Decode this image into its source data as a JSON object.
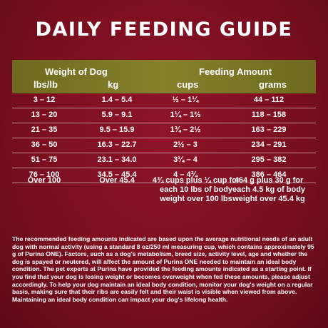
{
  "title": "DAILY FEEDING GUIDE",
  "header": {
    "weight_of_dog": "Weight of Dog",
    "feeding_amount": "Feeding Amount",
    "lbs_col": "lbs/lb",
    "kg_col": "kg",
    "cups_col": "cups",
    "grams_col": "grams"
  },
  "rows": [
    {
      "lbs": "3 – 12",
      "kg": "1.4 – 5.4",
      "cups": "½ – 1¼",
      "grams": "44 – 112"
    },
    {
      "lbs": "13 – 20",
      "kg": "5.9 – 9.1",
      "cups": "1¼ – 1⅔",
      "grams": "118 – 158"
    },
    {
      "lbs": "21 – 35",
      "kg": "9.5 – 15.9",
      "cups": "1¾ – 2½",
      "grams": "163 – 229"
    },
    {
      "lbs": "36 – 50",
      "kg": "16.3 – 22.7",
      "cups": "2½ – 3",
      "grams": "234 – 291"
    },
    {
      "lbs": "51 – 75",
      "kg": "23.1 – 34.0",
      "cups": "3¼ – 4",
      "grams": "295 – 382"
    },
    {
      "lbs": "76 – 100",
      "kg": "34.5 – 45.4",
      "cups": "4 – 4¾",
      "grams": "386 – 464"
    }
  ],
  "over_row": {
    "lbs": "Over 100",
    "kg": "Over 45.4",
    "cups": "4¾ cups plus ¼ cup for each 10 lbs of body weight over 100 lbs",
    "grams": "464 g plus 30 g for each 4.5 kg of body weight over 45.4 kg"
  },
  "note": "The recommended feeding amounts indicated are based upon the average nutritional needs of an adult dog with normal activity (using a standard 8 oz/250 ml measuring cup, which contains approximately 95 g of Purina ONE). Factors, such as a dog's metabolism, breed size, activity level, age and whether the dog is spayed or neutered, will affect the amount of Purina ONE needed to maintain an ideal body condition. The pet experts at Purina have provided the feeding amounts indicated as a starting point. If you find that your dog is losing weight or becomes overweight when fed these amounts, please adjust accordingly. To help your dog maintain an ideal body condition, monitor your dog's weight on a regular basis, making sure that their ribs are easily felt and their waist is visible when viewed from above. Maintaining an ideal body condition can impact your dog's lifelong health.",
  "colors": {
    "background": "#7a0f20",
    "header_band": "#7c7826",
    "text": "#ffffff",
    "row_divider": "#c58a93"
  }
}
